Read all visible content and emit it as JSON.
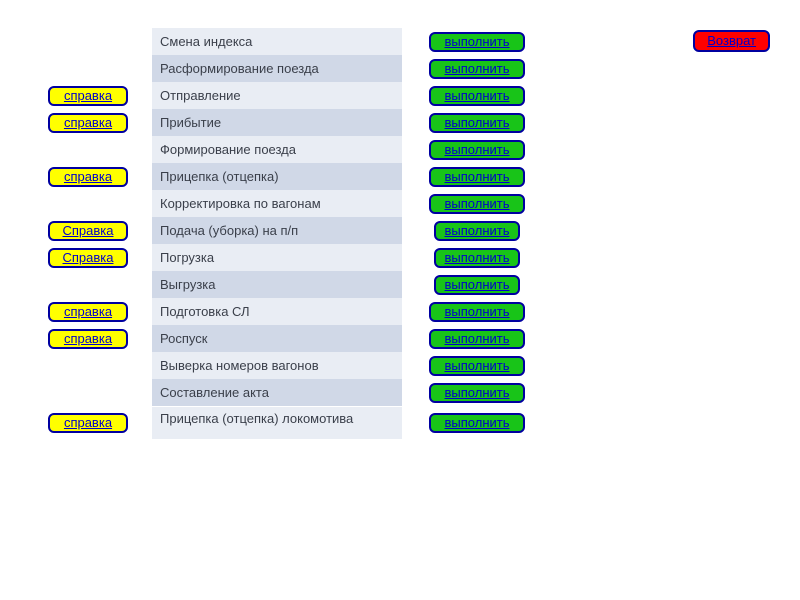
{
  "return_label": "Возврат",
  "rows": [
    {
      "help": null,
      "op": "Смена индекса",
      "shade": "light",
      "exec": "выполнить",
      "compact": false
    },
    {
      "help": null,
      "op": "Расформирование поезда",
      "shade": "dark",
      "exec": "выполнить",
      "compact": false
    },
    {
      "help": "справка",
      "op": "Отправление",
      "shade": "light",
      "exec": "выполнить",
      "compact": false
    },
    {
      "help": "справка",
      "op": "Прибытие",
      "shade": "dark",
      "exec": "выполнить",
      "compact": false
    },
    {
      "help": null,
      "op": "Формирование поезда",
      "shade": "light",
      "exec": "выполнить",
      "compact": false
    },
    {
      "help": "справка",
      "op": "Прицепка (отцепка)",
      "shade": "dark",
      "exec": "выполнить",
      "compact": false
    },
    {
      "help": null,
      "op": "Корректировка по вагонам",
      "shade": "light",
      "exec": "выполнить",
      "compact": false
    },
    {
      "help": "Справка",
      "op": "Подача (уборка)  на п/п",
      "shade": "dark",
      "exec": "выполнить",
      "compact": true
    },
    {
      "help": "Справка",
      "op": "Погрузка",
      "shade": "light",
      "exec": "выполнить",
      "compact": true
    },
    {
      "help": null,
      "op": "Выгрузка",
      "shade": "dark",
      "exec": "выполнить",
      "compact": true
    },
    {
      "help": "справка",
      "op": "Подготовка СЛ",
      "shade": "light",
      "exec": "выполнить",
      "compact": false
    },
    {
      "help": "справка",
      "op": "Роспуск",
      "shade": "dark",
      "exec": "выполнить",
      "compact": false
    },
    {
      "help": null,
      "op": "Выверка номеров вагонов",
      "shade": "light",
      "exec": "выполнить",
      "compact": false
    },
    {
      "help": null,
      "op": "Составление акта",
      "shade": "dark",
      "exec": "выполнить",
      "compact": false
    },
    {
      "help": "справка",
      "op": "Прицепка (отцепка) локомотива",
      "shade": "light",
      "exec": "выполнить",
      "compact": false,
      "tall": true
    }
  ],
  "colors": {
    "help_bg": "#ffff00",
    "exec_bg": "#18c418",
    "return_bg": "#ff0000",
    "border": "#0000a0",
    "link": "#0000cc",
    "row_light": "#e9edf4",
    "row_dark": "#d0d8e7"
  }
}
